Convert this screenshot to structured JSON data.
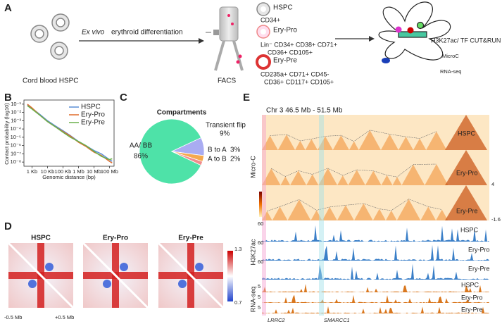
{
  "panel_letters": [
    "A",
    "B",
    "C",
    "D",
    "E"
  ],
  "panel_a": {
    "source": "Cord blood HSPC",
    "arrow_italic": "Ex vivo",
    "arrow_text": "erythroid differentiation",
    "sort": "FACS",
    "populations": [
      {
        "name": "HSPC",
        "markers": [
          "CD34+"
        ]
      },
      {
        "name": "Ery-Pro",
        "markers": [
          "Lin⁻ CD34+ CD38+ CD71+",
          "CD36+ CD105+"
        ]
      },
      {
        "name": "Ery-Pre",
        "markers": [
          "CD235a+ CD71+ CD45-",
          "CD36+ CD117+ CD105+"
        ]
      }
    ],
    "assays": [
      "H3K27ac/ TF CUT&RUN",
      "MicroC",
      "RNA-seq"
    ]
  },
  "chart_data": [
    {
      "type": "line",
      "ylabel": "Contact probability (log10)",
      "xlabel": "Genomic distance (bp)",
      "xscale": "log",
      "xlim": [
        300,
        200000000
      ],
      "xticks": [
        {
          "value": 1000,
          "label": "1 Kb"
        },
        {
          "value": 10000,
          "label": "10 Kb"
        },
        {
          "value": 100000,
          "label": "100 Kb"
        },
        {
          "value": 1000000,
          "label": "1 Mb"
        },
        {
          "value": 10000000,
          "label": "10 Mb"
        },
        {
          "value": 100000000,
          "label": "100 Mb"
        }
      ],
      "ylim": [
        -8.5,
        -0.5
      ],
      "yticks": [
        {
          "value": -1,
          "label": "10⁻¹"
        },
        {
          "value": -2,
          "label": "10⁻²"
        },
        {
          "value": -3,
          "label": "10⁻³"
        },
        {
          "value": -4,
          "label": "10⁻⁴"
        },
        {
          "value": -5,
          "label": "10⁻⁵"
        },
        {
          "value": -6,
          "label": "10⁻⁶"
        },
        {
          "value": -7,
          "label": "10⁻⁷"
        },
        {
          "value": -8,
          "label": "10⁻⁸"
        }
      ],
      "x": [
        500,
        1000,
        3000,
        10000,
        30000,
        100000,
        300000,
        1000000,
        3000000,
        10000000,
        30000000,
        100000000,
        150000000
      ],
      "series": [
        {
          "name": "HSPC",
          "color": "#5b8fd6",
          "values": [
            -1.1,
            -1.5,
            -2.2,
            -3.0,
            -3.6,
            -4.2,
            -4.8,
            -5.5,
            -6.0,
            -6.6,
            -7.0,
            -7.7,
            -7.9
          ]
        },
        {
          "name": "Ery-Pro",
          "color": "#e06c2a",
          "values": [
            -1.0,
            -1.45,
            -2.3,
            -3.1,
            -3.7,
            -4.3,
            -4.85,
            -5.6,
            -6.1,
            -6.8,
            -7.2,
            -7.9,
            -8.1
          ]
        },
        {
          "name": "Ery-Pre",
          "color": "#6ab04c",
          "values": [
            -1.2,
            -1.6,
            -2.3,
            -3.1,
            -3.7,
            -4.4,
            -5.0,
            -5.5,
            -6.0,
            -6.7,
            -7.3,
            -7.7,
            -7.6
          ]
        }
      ],
      "legend": "upper right"
    },
    {
      "type": "pie",
      "title": "Compartments",
      "categories": [
        "AA/ BB",
        "Transient flip",
        "B to A",
        "A to B"
      ],
      "values": [
        86,
        9,
        3,
        2
      ],
      "value_labels": [
        "86%",
        "9%",
        "3%",
        "2%"
      ],
      "colors": [
        "#4ee2a8",
        "#a9acf2",
        "#f5a94e",
        "#f08c8c"
      ]
    }
  ],
  "panel_d": {
    "samples": [
      "HSPC",
      "Ery-Pro",
      "Ery-Pre"
    ],
    "colorbar": [
      "1.3",
      "0.7"
    ],
    "axis": [
      "-0.5 Mb",
      "+0.5 Mb"
    ]
  },
  "panel_e": {
    "region": "Chr 3 46.5 Mb - 51.5 Mb",
    "tracks": [
      {
        "name": "Micro-C",
        "samples": [
          "HSPC",
          "Ery-Pro",
          "Ery-Pre"
        ]
      },
      {
        "name": "H3K27ac",
        "samples": [
          "HSPC",
          "Ery-Pro",
          "Ery-Pre"
        ]
      },
      {
        "name": "RNA-seq",
        "samples": [
          "HSPC",
          "Ery-Pro",
          "Ery-Pre"
        ]
      }
    ],
    "microc_scale": [
      "4",
      "-1.6"
    ],
    "h3k27ac_scale": [
      "60",
      "60",
      "60"
    ],
    "rnaseq_scale": [
      "5",
      "5",
      "5"
    ],
    "genes": [
      "LRRC2",
      "SMARCC1"
    ]
  }
}
